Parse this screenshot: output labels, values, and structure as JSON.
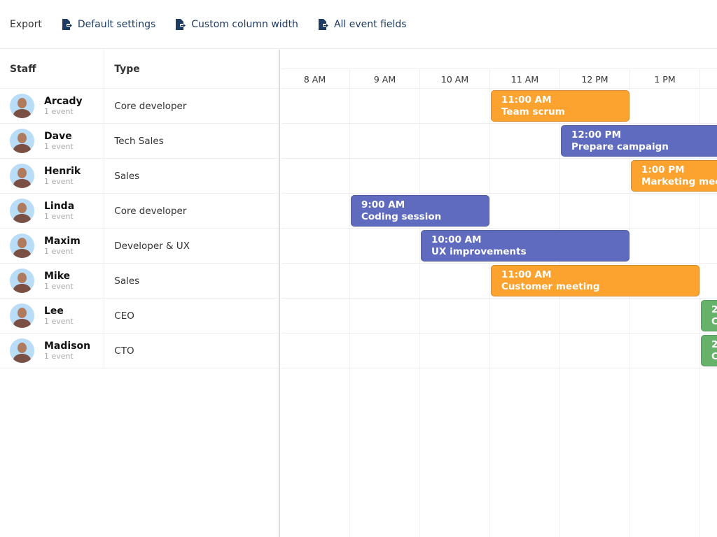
{
  "toolbar": {
    "export_label": "Export",
    "buttons": [
      {
        "label": "Default settings",
        "icon": "file-export-icon"
      },
      {
        "label": "Custom column width",
        "icon": "file-export-icon"
      },
      {
        "label": "All event fields",
        "icon": "file-export-icon"
      }
    ]
  },
  "grid": {
    "headers": {
      "staff": "Staff",
      "type": "Type"
    },
    "rows": [
      {
        "name": "Arcady",
        "events": "1 event",
        "type": "Core developer"
      },
      {
        "name": "Dave",
        "events": "1 event",
        "type": "Tech Sales"
      },
      {
        "name": "Henrik",
        "events": "1 event",
        "type": "Sales"
      },
      {
        "name": "Linda",
        "events": "1 event",
        "type": "Core developer"
      },
      {
        "name": "Maxim",
        "events": "1 event",
        "type": "Developer & UX"
      },
      {
        "name": "Mike",
        "events": "1 event",
        "type": "Sales"
      },
      {
        "name": "Lee",
        "events": "1 event",
        "type": "CEO"
      },
      {
        "name": "Madison",
        "events": "1 event",
        "type": "CTO"
      }
    ]
  },
  "timeline": {
    "hours": [
      "8 AM",
      "9 AM",
      "10 AM",
      "11 AM",
      "12 PM",
      "1 PM"
    ],
    "colors": {
      "orange": "#fca22f",
      "indigo": "#5f6bbf",
      "green": "#67b26b"
    },
    "events": [
      {
        "row": 0,
        "start": 11,
        "end": 13,
        "time": "11:00 AM",
        "title": "Team scrum",
        "color": "orange"
      },
      {
        "row": 1,
        "start": 12,
        "end": null,
        "time": "12:00 PM",
        "title": "Prepare campaign",
        "color": "indigo"
      },
      {
        "row": 2,
        "start": 13,
        "end": null,
        "time": "1:00 PM",
        "title": "Marketing mee",
        "color": "orange"
      },
      {
        "row": 3,
        "start": 9,
        "end": 11,
        "time": "9:00 AM",
        "title": "Coding session",
        "color": "indigo"
      },
      {
        "row": 4,
        "start": 10,
        "end": 13,
        "time": "10:00 AM",
        "title": "UX improvements",
        "color": "indigo"
      },
      {
        "row": 5,
        "start": 11,
        "end": 14,
        "time": "11:00 AM",
        "title": "Customer meeting",
        "color": "orange"
      },
      {
        "row": 6,
        "start": 14,
        "end": null,
        "time": "2",
        "title": "C",
        "color": "green"
      },
      {
        "row": 7,
        "start": 14,
        "end": null,
        "time": "2",
        "title": "C",
        "color": "green"
      }
    ]
  }
}
